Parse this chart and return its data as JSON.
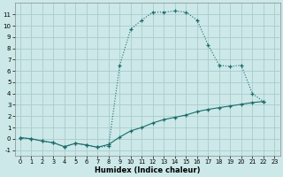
{
  "xlabel": "Humidex (Indice chaleur)",
  "bg_color": "#cce8e8",
  "grid_color": "#aacccc",
  "line_color": "#1a6b6b",
  "xlim": [
    -0.5,
    23.5
  ],
  "ylim": [
    -1.5,
    12.0
  ],
  "xticks": [
    0,
    1,
    2,
    3,
    4,
    5,
    6,
    7,
    8,
    9,
    10,
    11,
    12,
    13,
    14,
    15,
    16,
    17,
    18,
    19,
    20,
    21,
    22,
    23
  ],
  "yticks": [
    -1,
    0,
    1,
    2,
    3,
    4,
    5,
    6,
    7,
    8,
    9,
    10,
    11
  ],
  "curve1_x": [
    0,
    1,
    2,
    3,
    4,
    5,
    6,
    7,
    8,
    9,
    10,
    11,
    12,
    13,
    14,
    15,
    16,
    17,
    18,
    19,
    20,
    21,
    22
  ],
  "curve1_y": [
    0.1,
    0.0,
    -0.2,
    -0.35,
    -0.7,
    -0.4,
    -0.55,
    -0.75,
    -0.65,
    6.5,
    9.7,
    10.5,
    11.2,
    11.2,
    11.3,
    11.2,
    10.5,
    8.3,
    6.5,
    6.4,
    6.5,
    4.0,
    3.3
  ],
  "curve2_x": [
    0,
    1,
    2,
    3,
    4,
    5,
    6,
    7,
    8,
    9,
    10,
    11,
    12,
    13,
    14,
    15,
    16,
    17,
    18,
    19,
    20,
    21,
    22
  ],
  "curve2_y": [
    0.1,
    0.0,
    -0.2,
    -0.35,
    -0.7,
    -0.4,
    -0.55,
    -0.75,
    -0.5,
    0.15,
    0.7,
    1.0,
    1.4,
    1.7,
    1.9,
    2.1,
    2.4,
    2.6,
    2.75,
    2.9,
    3.05,
    3.2,
    3.3
  ]
}
